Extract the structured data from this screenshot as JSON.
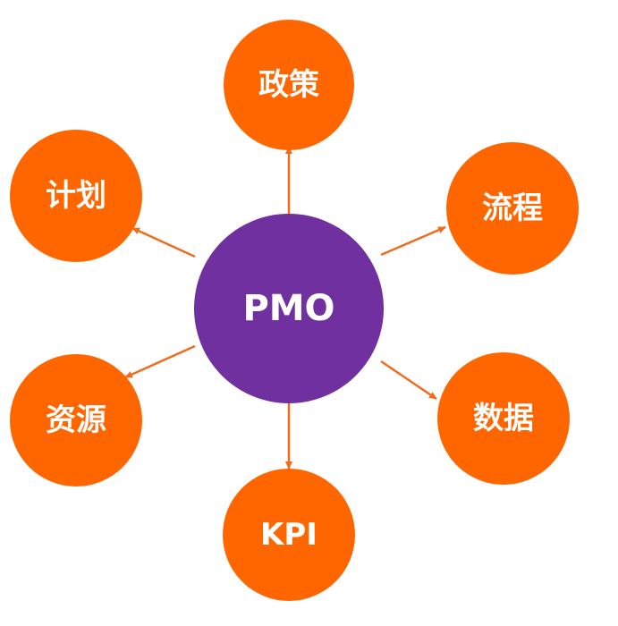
{
  "colors": {
    "center_fill": "#7030A0",
    "node_fill": "#FF6600",
    "arrow": "#F26B1D",
    "label": "#FFFFFF"
  },
  "center": {
    "label": "PMO"
  },
  "nodes": {
    "policy": {
      "label": "政策"
    },
    "process": {
      "label": "流程"
    },
    "data": {
      "label": "数据"
    },
    "kpi": {
      "label": "KPI"
    },
    "resources": {
      "label": "资源"
    },
    "plan": {
      "label": "计划"
    }
  }
}
